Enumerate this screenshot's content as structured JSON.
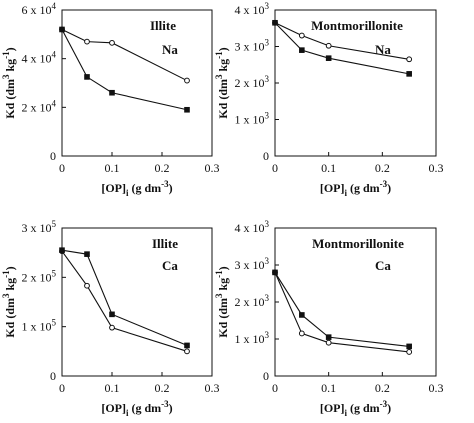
{
  "chart_data": [
    {
      "type": "line",
      "panel": "top-left",
      "title": "Illite",
      "subtitle": "Na",
      "xlabel": "[OP]i  (g dm-3)",
      "ylabel": "Kd (dm3 kg-1)",
      "xlim": [
        0,
        0.3
      ],
      "ylim": [
        0,
        60000
      ],
      "x_ticks": [
        "0",
        "0.1",
        "0.2",
        "0.3"
      ],
      "y_ticks": [
        "0",
        "2 x 10^4",
        "4 x 10^4",
        "6 x 10^4"
      ],
      "series": [
        {
          "marker": "open-circle",
          "x": [
            0,
            0.05,
            0.1,
            0.25
          ],
          "values": [
            52000,
            47000,
            46500,
            31000
          ]
        },
        {
          "marker": "filled-square",
          "x": [
            0,
            0.05,
            0.1,
            0.25
          ],
          "values": [
            52000,
            32500,
            26000,
            19000
          ]
        }
      ]
    },
    {
      "type": "line",
      "panel": "top-right",
      "title": "Montmorillonite",
      "subtitle": "Na",
      "xlabel": "[OP]i  (g dm-3)",
      "ylabel": "Kd (dm3 kg-1)",
      "xlim": [
        0,
        0.3
      ],
      "ylim": [
        0,
        4000
      ],
      "x_ticks": [
        "0",
        "0.1",
        "0.2",
        "0.3"
      ],
      "y_ticks": [
        "0",
        "1 x 10^3",
        "2 x 10^3",
        "3 x 10^3",
        "4 x 10^3"
      ],
      "series": [
        {
          "marker": "open-circle",
          "x": [
            0,
            0.05,
            0.1,
            0.25
          ],
          "values": [
            3650,
            3300,
            3020,
            2650
          ]
        },
        {
          "marker": "filled-square",
          "x": [
            0,
            0.05,
            0.1,
            0.25
          ],
          "values": [
            3650,
            2900,
            2680,
            2250
          ]
        }
      ]
    },
    {
      "type": "line",
      "panel": "bottom-left",
      "title": "Illite",
      "subtitle": "Ca",
      "xlabel": "[OP]i  (g dm-3)",
      "ylabel": "Kd (dm3 kg-1)",
      "xlim": [
        0,
        0.3
      ],
      "ylim": [
        0,
        300000
      ],
      "x_ticks": [
        "0",
        "0.1",
        "0.2",
        "0.3"
      ],
      "y_ticks": [
        "0",
        "1 x 10^5",
        "2 x 10^5",
        "3 x 10^5"
      ],
      "series": [
        {
          "marker": "open-circle",
          "x": [
            0,
            0.05,
            0.1,
            0.25
          ],
          "values": [
            253000,
            183000,
            98000,
            50000
          ]
        },
        {
          "marker": "filled-square",
          "x": [
            0,
            0.05,
            0.1,
            0.25
          ],
          "values": [
            255000,
            247000,
            125000,
            62000
          ]
        }
      ]
    },
    {
      "type": "line",
      "panel": "bottom-right",
      "title": "Montmorillonite",
      "subtitle": "Ca",
      "xlabel": "[OP]i  (g dm-3)",
      "ylabel": "Kd (dm3 kg-1)",
      "xlim": [
        0,
        0.3
      ],
      "ylim": [
        0,
        4000
      ],
      "x_ticks": [
        "0",
        "0.1",
        "0.2",
        "0.3"
      ],
      "y_ticks": [
        "0",
        "1 x 10^3",
        "2 x 10^3",
        "3 x 10^3",
        "4 x 10^3"
      ],
      "series": [
        {
          "marker": "open-circle",
          "x": [
            0,
            0.05,
            0.1,
            0.25
          ],
          "values": [
            2800,
            1150,
            900,
            650
          ]
        },
        {
          "marker": "filled-square",
          "x": [
            0,
            0.05,
            0.1,
            0.25
          ],
          "values": [
            2800,
            1650,
            1050,
            800
          ]
        }
      ]
    }
  ]
}
